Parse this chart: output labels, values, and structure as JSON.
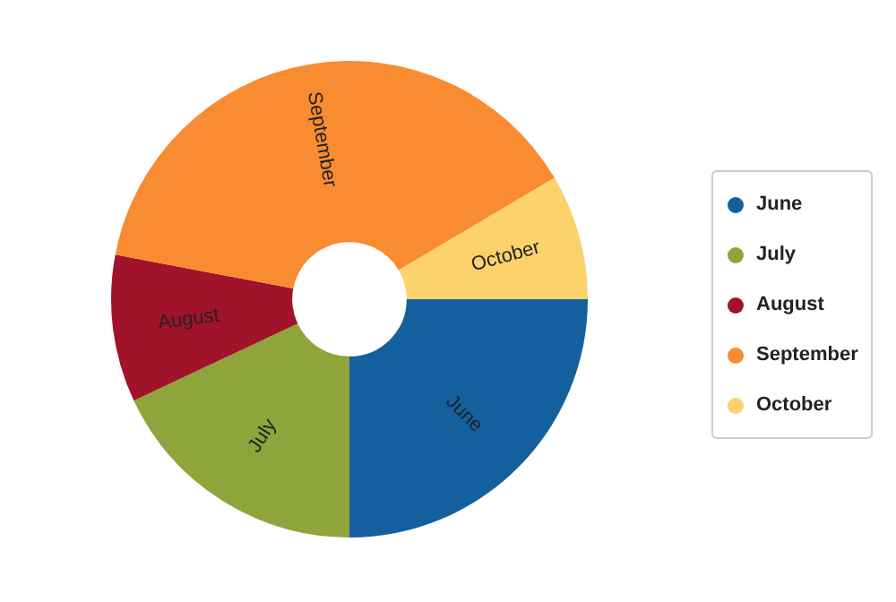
{
  "chart_data": {
    "type": "donut",
    "categories": [
      "June",
      "July",
      "August",
      "September",
      "October"
    ],
    "values": [
      25,
      18,
      10,
      38.5,
      8.5
    ],
    "colors": [
      "#14609e",
      "#8fa53b",
      "#a0132a",
      "#f98b31",
      "#fdd16b"
    ],
    "legend": "right"
  }
}
